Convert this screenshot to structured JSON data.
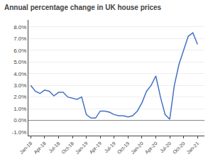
{
  "chart_data": {
    "type": "line",
    "title": "Annual percentage change in UK house prices",
    "categories": [
      "Jan-18",
      null,
      null,
      "Apr-18",
      null,
      null,
      "Jul-18",
      null,
      null,
      "Oct-18",
      null,
      null,
      "Jan-19",
      null,
      null,
      "Apr-19",
      null,
      null,
      "Jul-19",
      null,
      null,
      "Oct-19",
      null,
      null,
      "Jan-20",
      null,
      null,
      "Apr-20",
      null,
      null,
      "Jul-20",
      null,
      null,
      "Oct-20",
      null,
      null,
      "Jan-21"
    ],
    "values": [
      0.03,
      0.025,
      0.023,
      0.026,
      0.025,
      0.021,
      0.024,
      0.024,
      0.02,
      0.019,
      0.018,
      0.02,
      0.005,
      0.002,
      0.002,
      0.008,
      0.008,
      0.007,
      0.005,
      0.004,
      0.004,
      0.003,
      0.004,
      0.008,
      0.015,
      0.025,
      0.03,
      0.038,
      0.02,
      0.005,
      0.001,
      0.03,
      0.048,
      0.06,
      0.072,
      0.075,
      0.065
    ],
    "color": "#4472C4",
    "ylim": [
      -0.013,
      0.086
    ],
    "yticks": [
      {
        "value": -0.01,
        "label": "-1.0%"
      },
      {
        "value": 0.0,
        "label": "0.0%"
      },
      {
        "value": 0.01,
        "label": "1.0%"
      },
      {
        "value": 0.02,
        "label": "2.0%"
      },
      {
        "value": 0.03,
        "label": "3.0%"
      },
      {
        "value": 0.04,
        "label": "4.0%"
      },
      {
        "value": 0.05,
        "label": "5.0%"
      },
      {
        "value": 0.06,
        "label": "6.0%"
      },
      {
        "value": 0.07,
        "label": "7.0%"
      },
      {
        "value": 0.08,
        "label": "8.0%"
      }
    ],
    "grid": true
  }
}
